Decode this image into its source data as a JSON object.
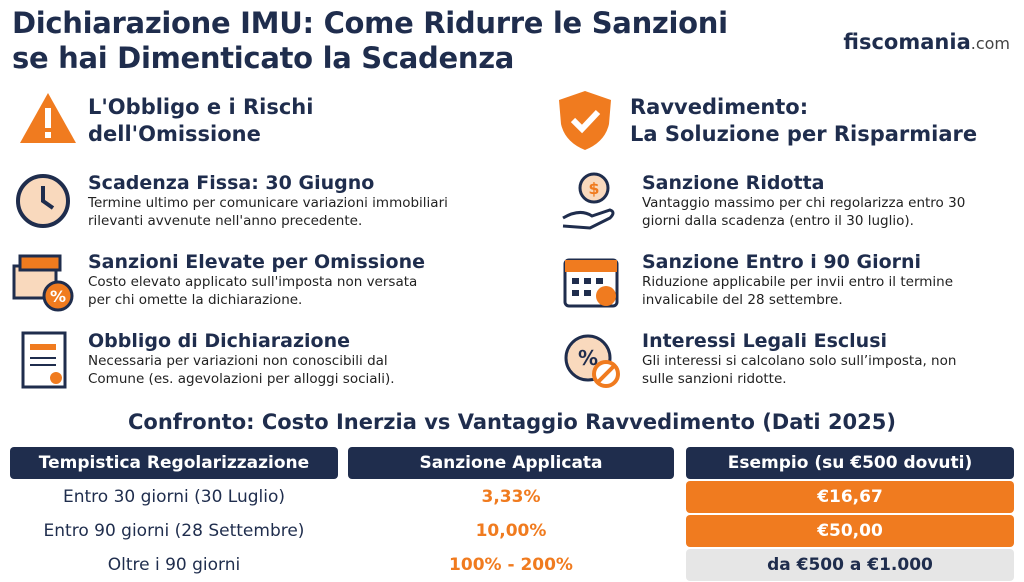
{
  "header": {
    "title": [
      "Dichiarazione IMU: Come Ridurre le Sanzioni",
      "se hai Dimenticato la Scadenza"
    ],
    "brand": {
      "name": "fiscomania",
      "suffix": ".com"
    }
  },
  "left": {
    "title": [
      "L'Obbligo e i Rischi",
      "dell'Omissione"
    ],
    "items": [
      {
        "title": "Scadenza Fissa: 30 Giugno",
        "text": [
          "Termine ultimo per comunicare variazioni immobiliari",
          "rilevanti avvenute nell'anno precedente."
        ]
      },
      {
        "title": "Sanzioni Elevate per Omissione",
        "text": [
          "Costo elevato applicato sull'imposta non versata",
          "per chi omette la dichiarazione."
        ]
      },
      {
        "title": "Obbligo di Dichiarazione",
        "text": [
          "Necessaria per variazioni non conoscibili dal",
          "Comune (es. agevolazioni per alloggi sociali)."
        ]
      }
    ]
  },
  "right": {
    "title": [
      "Ravvedimento:",
      "La Soluzione per Risparmiare"
    ],
    "items": [
      {
        "title": "Sanzione Ridotta",
        "text": [
          "Vantaggio massimo per chi regolarizza entro 30",
          "giorni dalla scadenza (entro il 30 luglio)."
        ]
      },
      {
        "title": "Sanzione Entro i 90 Giorni",
        "text": [
          "Riduzione applicabile per invii entro il termine",
          "invalicabile del 28 settembre."
        ]
      },
      {
        "title": "Interessi Legali Esclusi",
        "text": [
          "Gli interessi si calcolano solo sull’imposta, non",
          "sulle sanzioni ridotte."
        ]
      }
    ]
  },
  "table": {
    "title": "Confronto: Costo Inerzia vs Vantaggio Ravvedimento (Dati 2025)",
    "columns": [
      "Tempistica Regolarizzazione",
      "Sanzione Applicata",
      "Esempio (su €500 dovuti)"
    ],
    "rows": [
      [
        "Entro 30 giorni (30 Luglio)",
        "3,33%",
        "€16,67"
      ],
      [
        "Entro 90 giorni (28 Settembre)",
        "10,00%",
        "€50,00"
      ],
      [
        "Oltre i 90 giorni",
        "100% - 200%",
        "da €500 a €1.000"
      ]
    ]
  }
}
